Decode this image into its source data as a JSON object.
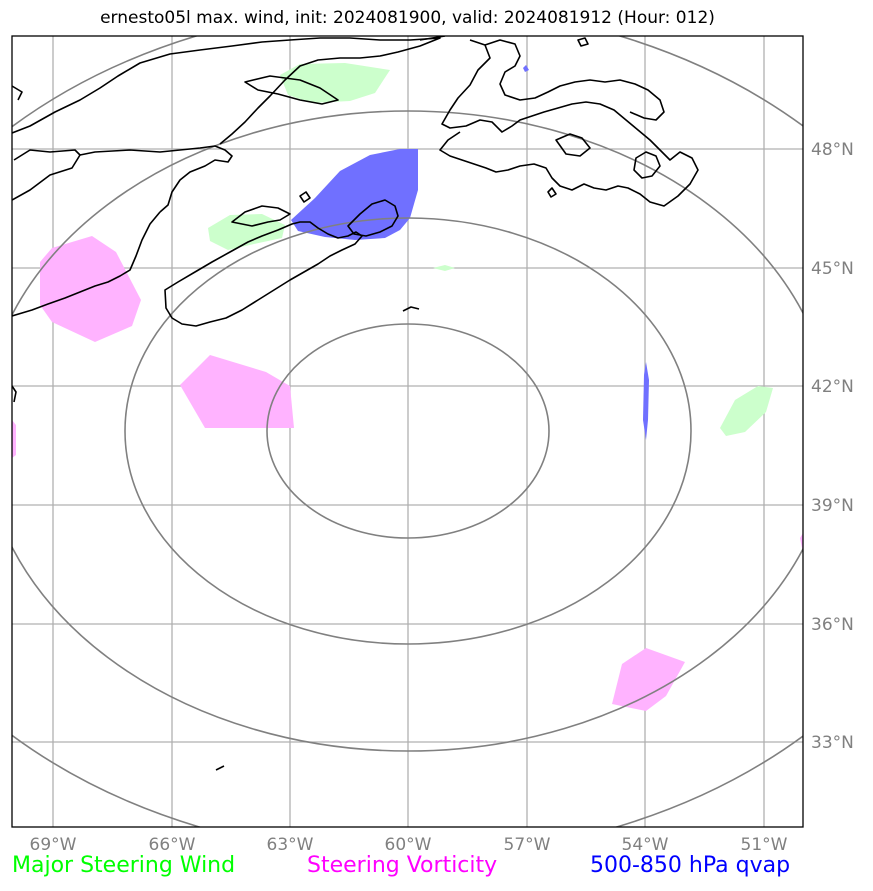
{
  "title": "ernesto05l max. wind, init: 2024081900, valid: 2024081912 (Hour: 012)",
  "longitude_labels": [
    "69°W",
    "66°W",
    "63°W",
    "60°W",
    "57°W",
    "54°W",
    "51°W"
  ],
  "latitude_labels": [
    "48°N",
    "45°N",
    "42°N",
    "39°N",
    "36°N",
    "33°N"
  ],
  "legend": {
    "wind": {
      "label": "Major Steering Wind",
      "color": "#00ff00"
    },
    "vorticity": {
      "label": "Steering Vorticity",
      "color": "#ff00ff"
    },
    "qvap": {
      "label": "500-850 hPa qvap",
      "color": "#0000ff"
    }
  },
  "fill_colors": {
    "wind": "#ccffcc",
    "vorticity": "#ffb3ff",
    "qvap": "#7070ff"
  },
  "grid_color": "#b0b0b0",
  "ring_color": "#808080",
  "coast_color": "#000000"
}
